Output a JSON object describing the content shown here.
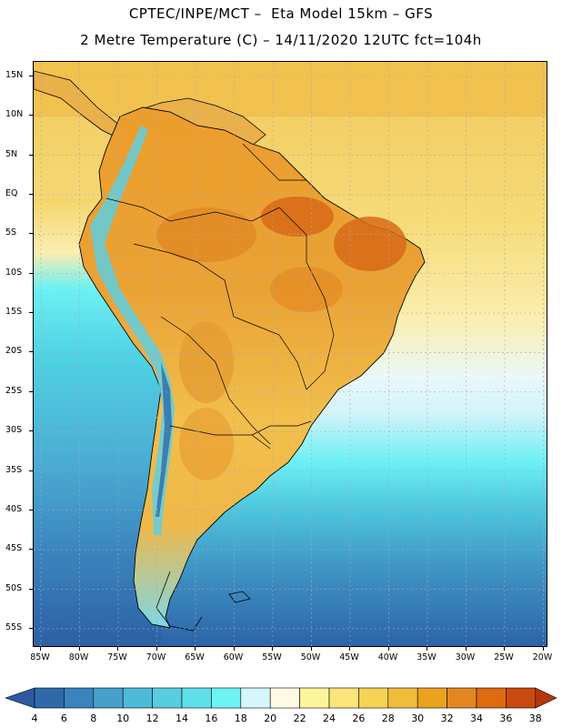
{
  "title_line1": "CPTEC/INPE/MCT –  Eta Model 15km – GFS",
  "title_line2": "2 Metre Temperature (C) – 14/11/2020 12UTC fct=104h",
  "lat_labels": [
    "15N",
    "10N",
    "5N",
    "EQ",
    "5S",
    "10S",
    "15S",
    "20S",
    "25S",
    "30S",
    "35S",
    "40S",
    "45S",
    "50S",
    "55S"
  ],
  "lon_labels": [
    "85W",
    "80W",
    "75W",
    "70W",
    "65W",
    "60W",
    "55W",
    "50W",
    "45W",
    "40W",
    "35W",
    "30W",
    "25W",
    "20W"
  ],
  "colorbar": {
    "levels": [
      "4",
      "6",
      "8",
      "10",
      "12",
      "14",
      "16",
      "18",
      "20",
      "22",
      "24",
      "26",
      "28",
      "30",
      "32",
      "34",
      "36",
      "38"
    ],
    "colors": [
      "#2e6aaa",
      "#3b83bd",
      "#45a0cc",
      "#4dbad8",
      "#58cde0",
      "#5fe0e8",
      "#6ef3f5",
      "#d5f6fc",
      "#fffbe3",
      "#fdf59a",
      "#fbe57a",
      "#f6d256",
      "#efbc3c",
      "#eba21e",
      "#e58720",
      "#df6a12",
      "#c94a10"
    ],
    "under_color": "#2b5aa1",
    "over_color": "#b53608"
  },
  "map_colors": {
    "sea_cold": "#2b60a5",
    "land_warm": "#f2c14e",
    "land_hot": "#e38a26",
    "land_hottest": "#d9661a",
    "andes_cold": "#5ecfe2",
    "grid": "#b0b0b0"
  }
}
